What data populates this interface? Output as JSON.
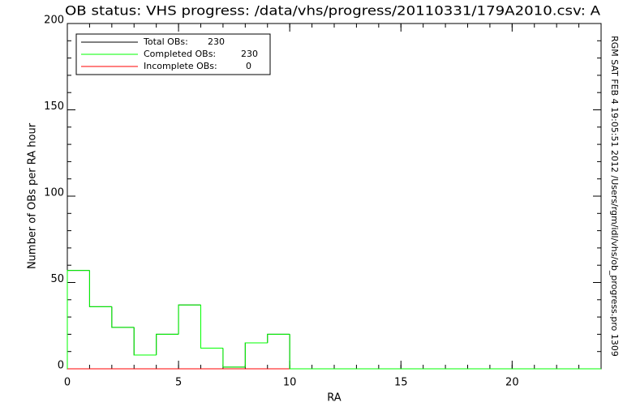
{
  "chart_data": {
    "type": "histogram",
    "title": "OB status: VHS progress: /data/vhs/progress/20110331/179A2010.csv: A",
    "x_label": "RA",
    "y_label": "Number of OBs per RA hour",
    "side_note": "RGM SAT FEB  4 19:05:51 2012 /Users/rgm/idl/vhs/ob_progress.pro 1309",
    "xlim": [
      0,
      24
    ],
    "ylim": [
      0,
      200
    ],
    "xticks": [
      0,
      5,
      10,
      15,
      20
    ],
    "yticks": [
      0,
      50,
      100,
      150,
      200
    ],
    "xminor_step": 1,
    "yminor_step": 10,
    "bins": [
      0,
      1,
      2,
      3,
      4,
      5,
      6,
      7,
      8,
      9,
      10,
      11,
      12,
      13,
      14,
      15,
      16,
      17,
      18,
      19,
      20,
      21,
      22,
      23,
      24
    ],
    "series": [
      {
        "name": "Total OBs:",
        "count": 230,
        "color": "#000000",
        "values": [
          57,
          36,
          24,
          8,
          20,
          37,
          12,
          1,
          15,
          20,
          0,
          0,
          0,
          0,
          0,
          0,
          0,
          0,
          0,
          0,
          0,
          0,
          0,
          0
        ]
      },
      {
        "name": "Completed  OBs:",
        "count": 230,
        "color": "#00ff00",
        "values": [
          57,
          36,
          24,
          8,
          20,
          37,
          12,
          1,
          15,
          20,
          0,
          0,
          0,
          0,
          0,
          0,
          0,
          0,
          0,
          0,
          0,
          0,
          0,
          0
        ]
      },
      {
        "name": "Incomplete OBs:",
        "count": 0,
        "color": "#ff0000",
        "values": [
          0,
          0,
          0,
          0,
          0,
          0,
          0,
          0,
          0,
          0,
          0,
          0,
          0,
          0,
          0,
          0,
          0,
          0,
          0,
          0,
          0,
          0,
          0,
          0
        ]
      }
    ]
  }
}
